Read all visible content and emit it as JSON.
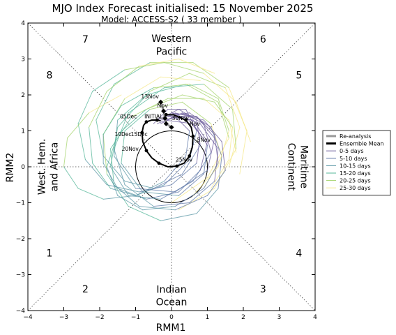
{
  "chart_data": {
    "type": "line",
    "title": "MJO Index Forecast initialised:  15  November 2025",
    "subtitle": "Model: ACCESS-S2 ( 33 member )",
    "xlabel": "RMM1",
    "ylabel": "RMM2",
    "xlim": [
      -4,
      4
    ],
    "ylim": [
      -4,
      4
    ],
    "xticks": [
      "−4",
      "−3",
      "−2",
      "−1",
      "0",
      "1",
      "2",
      "3",
      "4"
    ],
    "yticks": [
      "−4",
      "−3",
      "−2",
      "−1",
      "0",
      "1",
      "2",
      "3",
      "4"
    ],
    "phases": [
      {
        "label": "1",
        "x": -3.4,
        "y": -2.4
      },
      {
        "label": "2",
        "x": -2.4,
        "y": -3.4
      },
      {
        "label": "3",
        "x": 2.55,
        "y": -3.4
      },
      {
        "label": "4",
        "x": 3.55,
        "y": -2.4
      },
      {
        "label": "5",
        "x": 3.55,
        "y": 2.55
      },
      {
        "label": "6",
        "x": 2.55,
        "y": 3.55
      },
      {
        "label": "7",
        "x": -2.4,
        "y": 3.55
      },
      {
        "label": "8",
        "x": -3.4,
        "y": 2.55
      }
    ],
    "regions": {
      "top": [
        "Western",
        "Pacific"
      ],
      "bottom": [
        "Indian",
        "Ocean"
      ],
      "left": [
        "West. Hem.",
        "and Africa"
      ],
      "right": [
        "Maritime",
        "Continent"
      ]
    },
    "legend": {
      "placement": "right",
      "entries": [
        {
          "label": "Re-analysis",
          "color": "#999999",
          "width": 3
        },
        {
          "label": "Ensemble Mean",
          "color": "#000000",
          "width": 3
        },
        {
          "label": "0-5 days",
          "color": "#6a5a9a",
          "width": 1
        },
        {
          "label": "5-10 days",
          "color": "#5f78a8",
          "width": 1
        },
        {
          "label": "10-15 days",
          "color": "#5b97a6",
          "width": 1
        },
        {
          "label": "15-20 days",
          "color": "#56b79a",
          "width": 1
        },
        {
          "label": "20-25 days",
          "color": "#a5d46e",
          "width": 1
        },
        {
          "label": "25-30 days",
          "color": "#f5e88a",
          "width": 1
        }
      ]
    },
    "reanalysis": {
      "x": [
        -0.3,
        -0.22,
        -0.18,
        -0.15,
        0.0
      ],
      "y": [
        1.8,
        1.55,
        1.35,
        1.2,
        1.1
      ],
      "labels": [
        {
          "text": "13Nov",
          "x": -0.6,
          "y": 1.9
        },
        {
          "text": "Nov",
          "x": -0.25,
          "y": 1.65
        }
      ]
    },
    "ensemble_mean": {
      "x": [
        -0.15,
        0.05,
        0.4,
        0.55,
        0.6,
        0.58,
        0.5,
        0.35,
        0.15,
        -0.1,
        -0.35,
        -0.55,
        -0.7,
        -0.8,
        -0.82,
        -0.78,
        -0.7,
        -0.55,
        -0.4,
        -0.3
      ],
      "y": [
        1.45,
        1.45,
        1.3,
        1.1,
        0.85,
        0.55,
        0.3,
        0.1,
        0.02,
        0.0,
        0.1,
        0.25,
        0.45,
        0.7,
        0.95,
        1.15,
        1.25,
        1.3,
        1.3,
        1.28
      ],
      "labels": [
        {
          "text": "30Nov",
          "x": 0.25,
          "y": 1.3
        },
        {
          "text": "Nov",
          "x": 0.65,
          "y": 1.15
        },
        {
          "text": "5Nov",
          "x": 0.9,
          "y": 0.7
        },
        {
          "text": "25Nov",
          "x": 0.35,
          "y": 0.15
        },
        {
          "text": "20Nov",
          "x": -1.15,
          "y": 0.45
        },
        {
          "text": "15Dec",
          "x": -0.9,
          "y": 0.85
        },
        {
          "text": "10Dec",
          "x": -1.35,
          "y": 0.85
        },
        {
          "text": "05Dec",
          "x": -1.2,
          "y": 1.35
        },
        {
          "text": "INITIAL",
          "x": -0.5,
          "y": 1.35
        }
      ]
    },
    "members": {
      "colors": [
        "#6a5a9a",
        "#5f78a8",
        "#5b97a6",
        "#56b79a",
        "#a5d46e",
        "#f5e88a"
      ],
      "series": [
        {
          "x": [
            -0.2,
            0.6,
            1.0,
            0.9,
            0.2,
            -0.8,
            -1.4,
            -1.3,
            -0.6,
            0.3,
            1.1,
            1.4,
            0.9
          ],
          "y": [
            1.3,
            1.2,
            0.6,
            -0.2,
            -0.8,
            -0.7,
            0.1,
            1.0,
            1.6,
            1.8,
            1.2,
            0.3,
            -0.6
          ]
        },
        {
          "x": [
            -0.1,
            0.7,
            1.2,
            1.0,
            0.1,
            -1.0,
            -1.6,
            -1.5,
            -0.7,
            0.4,
            1.3,
            1.6,
            1.0,
            0.0
          ],
          "y": [
            1.4,
            1.4,
            0.8,
            -0.1,
            -0.7,
            -0.6,
            0.3,
            1.3,
            2.0,
            2.3,
            1.8,
            0.8,
            -0.3,
            -1.0
          ]
        },
        {
          "x": [
            -0.3,
            0.3,
            0.9,
            1.1,
            0.6,
            -0.3,
            -1.2,
            -1.7,
            -1.5,
            -0.6,
            0.5,
            1.5,
            1.9,
            1.6
          ],
          "y": [
            1.2,
            1.5,
            1.2,
            0.4,
            -0.4,
            -0.9,
            -0.8,
            0.0,
            1.1,
            2.1,
            2.6,
            2.2,
            1.1,
            0.0
          ]
        },
        {
          "x": [
            0.0,
            0.8,
            1.3,
            1.2,
            0.5,
            -0.5,
            -1.3,
            -1.6,
            -1.2,
            -0.2,
            0.9,
            1.7,
            1.8,
            1.2,
            0.2
          ],
          "y": [
            1.5,
            1.2,
            0.5,
            -0.4,
            -1.0,
            -1.1,
            -0.5,
            0.5,
            1.5,
            2.2,
            2.3,
            1.6,
            0.5,
            -0.6,
            -1.2
          ]
        },
        {
          "x": [
            -0.4,
            0.2,
            0.7,
            0.8,
            0.3,
            -0.5,
            -1.3,
            -1.9,
            -2.1,
            -1.6,
            -0.6,
            0.6,
            1.6,
            2.1,
            1.9
          ],
          "y": [
            1.3,
            1.6,
            1.3,
            0.6,
            -0.2,
            -0.6,
            -0.4,
            0.3,
            1.3,
            2.3,
            2.9,
            2.9,
            2.2,
            1.0,
            -0.2
          ]
        },
        {
          "x": [
            -0.2,
            0.5,
            1.1,
            1.4,
            1.3,
            0.7,
            -0.3,
            -1.2,
            -1.8,
            -1.9,
            -1.3,
            -0.3,
            0.8
          ],
          "y": [
            1.4,
            1.5,
            1.1,
            0.3,
            -0.6,
            -1.3,
            -1.5,
            -1.1,
            -0.2,
            0.9,
            1.9,
            2.5,
            2.4
          ]
        },
        {
          "x": [
            -0.5,
            -0.1,
            0.4,
            0.7,
            0.5,
            -0.2,
            -1.0,
            -1.7,
            -2.2,
            -2.3,
            -1.8,
            -0.9,
            0.2,
            1.2
          ],
          "y": [
            1.2,
            1.6,
            1.6,
            1.0,
            0.2,
            -0.5,
            -0.8,
            -0.6,
            0.1,
            1.1,
            2.1,
            2.8,
            3.0,
            2.6
          ]
        },
        {
          "x": [
            0.1,
            0.9,
            1.4,
            1.5,
            1.0,
            0.1,
            -0.9,
            -1.6,
            -1.7,
            -1.1,
            -0.1,
            0.9,
            1.6,
            1.8
          ],
          "y": [
            1.5,
            1.3,
            0.7,
            -0.1,
            -0.8,
            -1.2,
            -1.1,
            -0.5,
            0.5,
            1.4,
            1.9,
            1.9,
            1.3,
            0.4
          ]
        },
        {
          "x": [
            -0.3,
            0.4,
            0.8,
            0.7,
            0.0,
            -0.9,
            -1.8,
            -2.4,
            -2.6,
            -2.2,
            -1.3,
            -0.2,
            0.9,
            1.8,
            2.2
          ],
          "y": [
            1.3,
            1.4,
            0.9,
            0.1,
            -0.5,
            -0.7,
            -0.5,
            0.2,
            1.2,
            2.1,
            2.7,
            2.9,
            2.6,
            1.8,
            0.7
          ]
        },
        {
          "x": [
            -0.1,
            0.6,
            1.0,
            0.8,
            0.2,
            -0.7,
            -1.5,
            -1.9,
            -1.9,
            -1.4,
            -0.5,
            0.5,
            1.3,
            1.6,
            1.3,
            0.6
          ],
          "y": [
            1.4,
            1.3,
            0.7,
            -0.1,
            -0.7,
            -0.9,
            -0.6,
            0.1,
            0.9,
            1.7,
            2.2,
            2.3,
            1.9,
            1.0,
            0.0,
            -0.8
          ]
        },
        {
          "x": [
            -0.4,
            0.1,
            0.5,
            0.4,
            -0.2,
            -1.0,
            -1.9,
            -2.6,
            -3.0,
            -2.9,
            -2.3,
            -1.4
          ],
          "y": [
            1.2,
            1.4,
            1.0,
            0.3,
            -0.4,
            -0.8,
            -0.9,
            -0.6,
            0.0,
            0.8,
            1.5,
            2.0
          ]
        },
        {
          "x": [
            0.0,
            0.7,
            1.2,
            1.3,
            0.9,
            0.1,
            -0.8,
            -1.5,
            -1.8,
            -1.5,
            -0.7,
            0.3,
            1.2,
            1.7,
            1.6,
            1.1
          ],
          "y": [
            1.5,
            1.4,
            0.9,
            0.1,
            -0.6,
            -1.1,
            -1.2,
            -0.8,
            0.0,
            0.9,
            1.6,
            2.0,
            1.8,
            1.1,
            0.2,
            -0.6
          ]
        }
      ]
    },
    "circle": {
      "radius": 1
    }
  }
}
